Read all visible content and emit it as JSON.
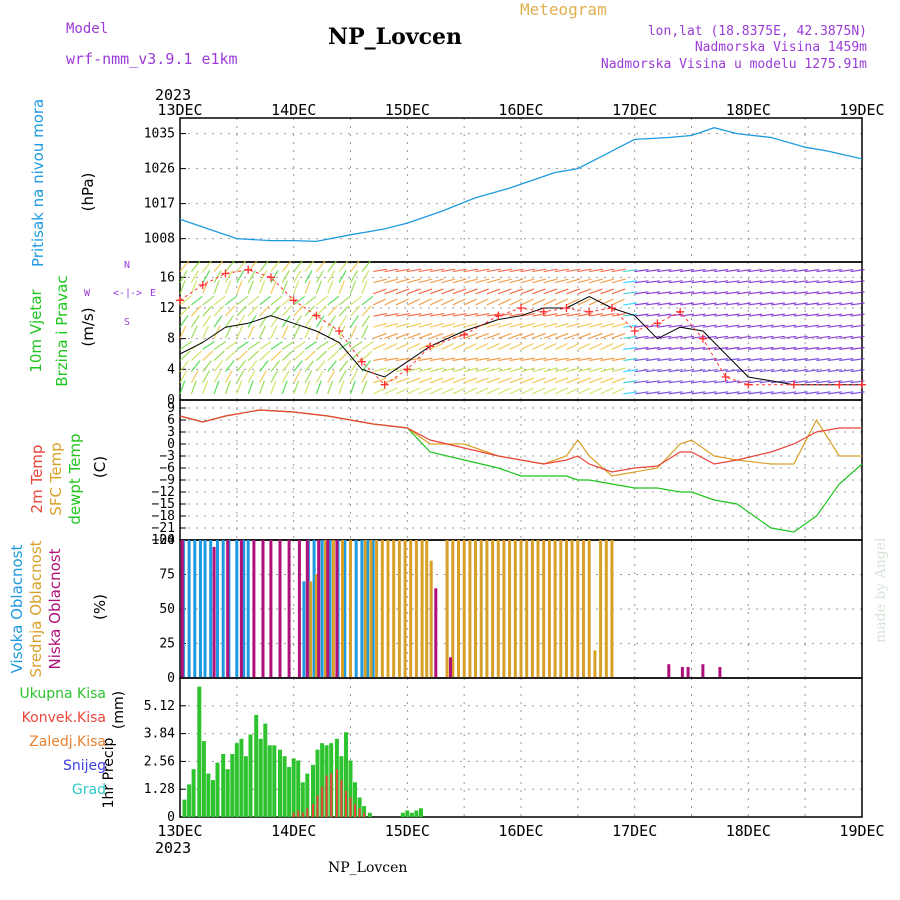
{
  "header": {
    "model_label": "Model",
    "model_value": "wrf-nmm_v3.9.1 e1km",
    "title": "NP_Lovcen",
    "meteogram_label": "Meteogram",
    "lonlat": "lon,lat (18.8375E, 42.3875N)",
    "altitude": "Nadmorska Visina 1459m",
    "model_altitude": "Nadmorska Visina u modelu 1275.91m",
    "footer": "NP_Lovcen",
    "credit": "made by Angel"
  },
  "colors": {
    "pressure": "#1e9ae0",
    "t2m": "#e8463a",
    "sfc": "#d8a028",
    "dewpt": "#1fc41f",
    "wind_speed": "#000000",
    "gust": "#ff3030",
    "high_cloud": "#1e9ae0",
    "mid_cloud": "#d8a028",
    "low_cloud": "#b0107a",
    "total_precip": "#2ec22e",
    "conv_precip": "#e8463a",
    "freezing": "#e88030",
    "snow": "#3c3ce0",
    "graupel": "#30c8c8",
    "purple_text": "#9b3bd8",
    "orange_text": "#e0b050"
  },
  "chart_data": [
    {
      "type": "line",
      "panel": "pressure",
      "ylabel_name": "Pritisak na nivou mora",
      "ylabel_unit": "(hPa)",
      "x_start_year": "2023",
      "x_tick_labels": [
        "13DEC",
        "14DEC",
        "15DEC",
        "16DEC",
        "17DEC",
        "18DEC",
        "19DEC"
      ],
      "x_days": [
        13,
        14,
        15,
        16,
        17,
        18,
        19
      ],
      "xlim": [
        13,
        19
      ],
      "ylim": [
        1002,
        1039
      ],
      "y_ticks": [
        1008,
        1017,
        1026,
        1035
      ],
      "grid": true,
      "x": [
        13.0,
        13.2,
        13.5,
        13.8,
        14.0,
        14.2,
        14.5,
        14.8,
        15.0,
        15.3,
        15.6,
        15.9,
        16.1,
        16.3,
        16.5,
        16.7,
        16.9,
        17.0,
        17.3,
        17.5,
        17.7,
        17.9,
        18.2,
        18.5,
        18.7,
        19.0
      ],
      "series": [
        {
          "values": [
            1013,
            1011,
            1008,
            1007.5,
            1007.5,
            1007.3,
            1009,
            1010.5,
            1012,
            1015,
            1018.5,
            1021,
            1023,
            1025,
            1026,
            1029,
            1032,
            1033.5,
            1034,
            1034.5,
            1036.5,
            1035,
            1034,
            1031.5,
            1030.5,
            1028.5
          ]
        }
      ]
    },
    {
      "type": "line",
      "panel": "wind",
      "ylabel_name_1": "10m Vjetar",
      "ylabel_name_2": "Brzina i Pravac",
      "ylabel_unit": "(m/s)",
      "direction_key": [
        "W",
        "<-",
        "|",
        "->",
        "E",
        "S",
        "N"
      ],
      "xlim": [
        13,
        19
      ],
      "ylim": [
        0,
        18
      ],
      "y_ticks": [
        0,
        4,
        8,
        12,
        16
      ],
      "grid": true,
      "x": [
        13.0,
        13.2,
        13.4,
        13.6,
        13.8,
        14.0,
        14.2,
        14.4,
        14.6,
        14.8,
        15.0,
        15.2,
        15.5,
        15.8,
        16.0,
        16.2,
        16.4,
        16.6,
        16.8,
        17.0,
        17.2,
        17.4,
        17.6,
        17.8,
        18.0,
        18.4,
        18.8,
        19.0
      ],
      "series": [
        {
          "name": "speed",
          "values": [
            6,
            7.5,
            9.5,
            10,
            11,
            10,
            9,
            7.5,
            4,
            3,
            5,
            7,
            9,
            10.5,
            11,
            12,
            12,
            13.5,
            12,
            11,
            8,
            9.5,
            9,
            6,
            3,
            2,
            2,
            2
          ]
        },
        {
          "name": "gust",
          "values": [
            13,
            15,
            16.5,
            17,
            16,
            13,
            11,
            9,
            5,
            2,
            4,
            7,
            8.5,
            11,
            12,
            11.5,
            12,
            11.5,
            12,
            9,
            10,
            11.5,
            8,
            3,
            2,
            2,
            2,
            2
          ]
        }
      ]
    },
    {
      "type": "line",
      "panel": "temperature",
      "ylabel_name_1": "2m Temp",
      "ylabel_name_2": "SFC Temp",
      "ylabel_name_3": "dewpt Temp",
      "ylabel_unit": "(C)",
      "xlim": [
        13,
        19
      ],
      "ylim": [
        -24,
        11
      ],
      "y_ticks": [
        -24,
        -21,
        -18,
        -15,
        -12,
        -9,
        -6,
        -3,
        0,
        3,
        6,
        9
      ],
      "grid": true,
      "x": [
        13.0,
        13.2,
        13.4,
        13.7,
        14.0,
        14.3,
        14.5,
        14.7,
        15.0,
        15.2,
        15.5,
        15.8,
        16.0,
        16.2,
        16.4,
        16.5,
        16.6,
        16.8,
        17.0,
        17.2,
        17.4,
        17.5,
        17.7,
        17.9,
        18.2,
        18.4,
        18.6,
        18.8,
        19.0
      ],
      "series": [
        {
          "name": "2m Temp",
          "values": [
            7,
            5.5,
            7,
            8.5,
            8,
            7,
            6,
            5,
            4,
            1,
            -1,
            -3,
            -4,
            -5,
            -4,
            -3,
            -5,
            -7,
            -6,
            -5.5,
            -2,
            -2,
            -5,
            -4,
            -2,
            0,
            3,
            4,
            4
          ]
        },
        {
          "name": "SFC Temp",
          "values": [
            7,
            5.5,
            7,
            8.5,
            8,
            7,
            6,
            5,
            4,
            0,
            0,
            -3,
            -4,
            -5,
            -3,
            1,
            -3,
            -8,
            -7,
            -6,
            0,
            1,
            -3,
            -4,
            -5,
            -5,
            6,
            -3,
            -3
          ]
        },
        {
          "name": "dewpt Temp",
          "values": [
            7,
            5.5,
            7,
            8.5,
            8,
            7,
            6,
            5,
            4,
            -2,
            -4,
            -6,
            -8,
            -8,
            -8,
            -9,
            -9,
            -10,
            -11,
            -11,
            -12,
            -12,
            -14,
            -15,
            -21,
            -22,
            -18,
            -10,
            -5
          ]
        }
      ]
    },
    {
      "type": "bar",
      "panel": "clouds",
      "ylabel_name_1": "Visoka Oblacnost",
      "ylabel_name_2": "Srednja Oblacnost",
      "ylabel_name_3": "Niska Oblacnost",
      "ylabel_unit": "(%)",
      "xlim": [
        13,
        19
      ],
      "ylim": [
        0,
        100
      ],
      "y_ticks": [
        0,
        25,
        50,
        75,
        100
      ],
      "grid": true,
      "series": [
        {
          "name": "Visoka Oblacnost",
          "x": [
            13.03,
            13.08,
            13.13,
            13.18,
            13.22,
            13.27,
            13.33,
            13.38,
            13.43,
            13.5,
            13.56,
            13.6,
            14.09,
            14.13,
            14.18,
            14.25,
            14.32,
            14.39,
            14.45,
            14.55,
            14.6,
            14.65,
            14.7
          ],
          "values": [
            100,
            100,
            100,
            100,
            100,
            100,
            100,
            100,
            100,
            100,
            100,
            100,
            70,
            100,
            100,
            100,
            100,
            100,
            100,
            100,
            100,
            100,
            100
          ]
        },
        {
          "name": "Srednja Oblacnost",
          "x": [
            14.15,
            14.2,
            14.28,
            14.35,
            14.43,
            14.5,
            14.63,
            14.68,
            14.73,
            14.78,
            14.83,
            14.88,
            14.93,
            14.98,
            15.03,
            15.08,
            15.13,
            15.17,
            15.21,
            15.35,
            15.4,
            15.45,
            15.5,
            15.55,
            15.6,
            15.65,
            15.7,
            15.75,
            15.8,
            15.85,
            15.9,
            15.95,
            16.0,
            16.05,
            16.1,
            16.15,
            16.2,
            16.25,
            16.3,
            16.35,
            16.4,
            16.45,
            16.5,
            16.55,
            16.6,
            16.65,
            16.7,
            16.75,
            16.8
          ],
          "values": [
            70,
            75,
            100,
            100,
            100,
            100,
            100,
            100,
            100,
            100,
            100,
            100,
            100,
            100,
            100,
            100,
            100,
            100,
            85,
            100,
            100,
            100,
            100,
            100,
            100,
            100,
            100,
            100,
            100,
            100,
            100,
            100,
            100,
            100,
            100,
            100,
            100,
            100,
            100,
            100,
            100,
            100,
            100,
            100,
            100,
            20,
            100,
            100,
            100
          ]
        },
        {
          "name": "Niska Oblacnost",
          "x": [
            13.02,
            13.3,
            13.42,
            13.54,
            13.65,
            13.73,
            13.8,
            13.88,
            13.96,
            14.05,
            14.12,
            14.22,
            14.3,
            14.38,
            15.25,
            15.38,
            17.3,
            17.42,
            17.47,
            17.6,
            17.75
          ],
          "values": [
            100,
            95,
            100,
            100,
            100,
            100,
            100,
            100,
            100,
            100,
            100,
            100,
            100,
            100,
            65,
            15,
            10,
            8,
            8,
            10,
            8
          ]
        }
      ]
    },
    {
      "type": "bar",
      "panel": "precipitation",
      "ylabel_name": "1hr Precip",
      "ylabel_unit": "(mm)",
      "legend": [
        "Ukupna Kisa",
        "Konvek.Kisa",
        "Zaledj.Kisa",
        "Snijeg",
        "Grad"
      ],
      "xlim": [
        13,
        19
      ],
      "ylim": [
        0,
        6.4
      ],
      "y_ticks": [
        0,
        1.28,
        2.56,
        3.84,
        5.12
      ],
      "grid": true,
      "x_bottom_labels": [
        "13DEC",
        "14DEC",
        "15DEC",
        "16DEC",
        "17DEC",
        "18DEC",
        "19DEC"
      ],
      "x_bottom_year": "2023",
      "series": [
        {
          "name": "Ukupna Kisa",
          "x": [
            13.04,
            13.08,
            13.12,
            13.17,
            13.21,
            13.25,
            13.29,
            13.33,
            13.38,
            13.42,
            13.46,
            13.5,
            13.54,
            13.58,
            13.62,
            13.67,
            13.71,
            13.75,
            13.79,
            13.83,
            13.88,
            13.92,
            13.96,
            14.0,
            14.04,
            14.08,
            14.12,
            14.17,
            14.21,
            14.25,
            14.29,
            14.33,
            14.38,
            14.42,
            14.46,
            14.5,
            14.54,
            14.58,
            14.62,
            14.67,
            14.96,
            15.0,
            15.04,
            15.08,
            15.12
          ],
          "values": [
            0.8,
            1.5,
            2.2,
            6.0,
            3.5,
            2.0,
            1.7,
            2.5,
            2.9,
            2.2,
            2.9,
            3.4,
            3.6,
            2.8,
            3.8,
            4.7,
            3.6,
            4.3,
            3.3,
            3.3,
            3.1,
            2.8,
            2.3,
            2.7,
            2.6,
            1.6,
            2.0,
            2.4,
            3.1,
            3.4,
            3.3,
            3.4,
            3.6,
            2.8,
            3.9,
            2.6,
            1.6,
            0.9,
            0.5,
            0.2,
            0.2,
            0.3,
            0.2,
            0.3,
            0.4
          ]
        },
        {
          "name": "Konvek.Kisa",
          "x": [
            14.0,
            14.04,
            14.08,
            14.12,
            14.17,
            14.21,
            14.25,
            14.29,
            14.33,
            14.38,
            14.42,
            14.46,
            14.5,
            14.54,
            14.58,
            14.62
          ],
          "values": [
            0.2,
            0.3,
            0.2,
            0.4,
            0.6,
            1.0,
            1.4,
            1.9,
            2.0,
            2.2,
            1.7,
            1.2,
            0.9,
            0.6,
            0.4,
            0.2
          ]
        }
      ]
    }
  ]
}
